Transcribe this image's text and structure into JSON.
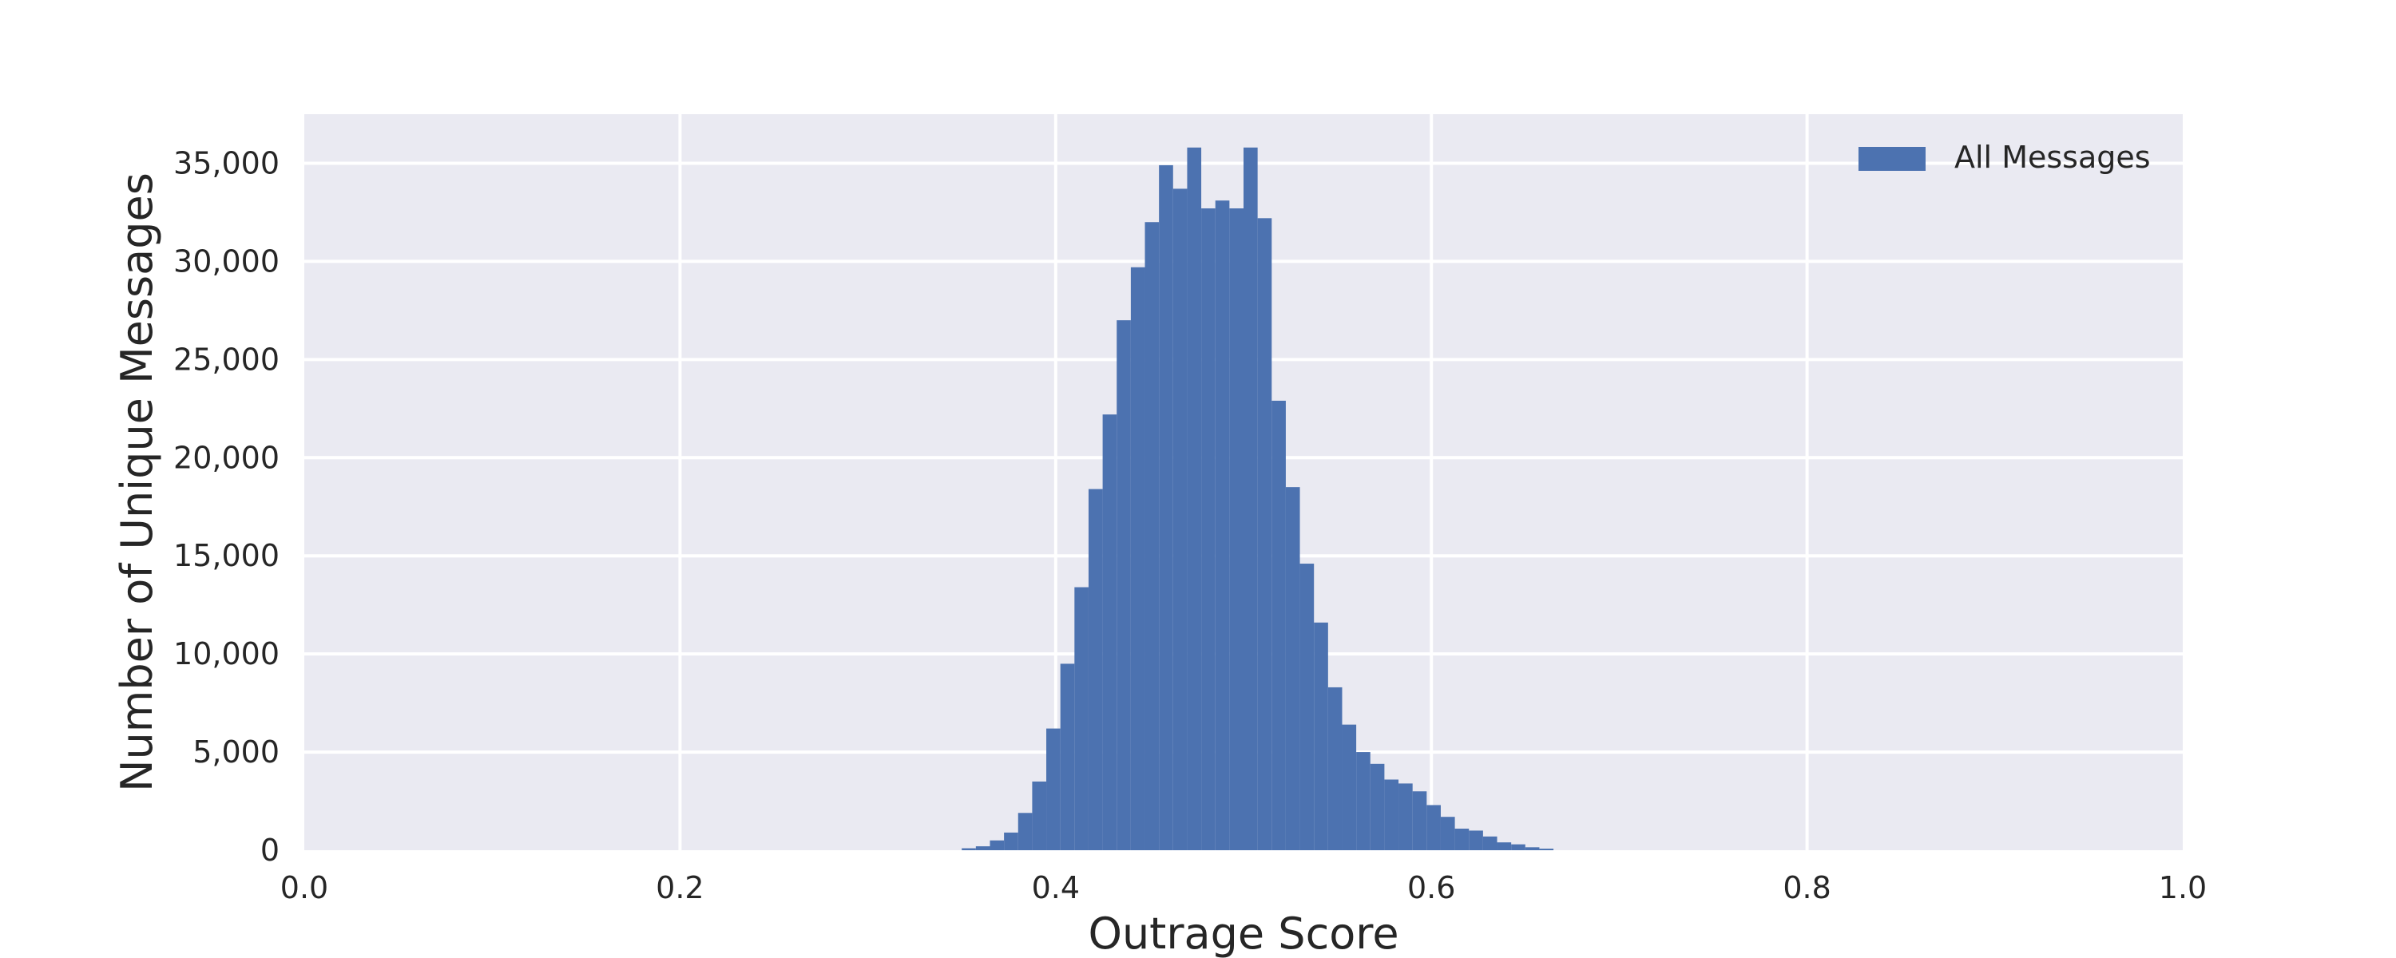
{
  "chart_data": {
    "type": "bar",
    "xlabel": "Outrage Score",
    "ylabel": "Number of Unique Messages",
    "xlim": [
      0.0,
      1.0
    ],
    "ylim": [
      0,
      37500
    ],
    "x_ticks": [
      0.0,
      0.2,
      0.4,
      0.6,
      0.8,
      1.0
    ],
    "x_tick_labels": [
      "0.0",
      "0.2",
      "0.4",
      "0.6",
      "0.8",
      "1.0"
    ],
    "y_ticks": [
      0,
      5000,
      10000,
      15000,
      20000,
      25000,
      30000,
      35000
    ],
    "y_tick_labels": [
      "0",
      "5,000",
      "10,000",
      "15,000",
      "20,000",
      "25,000",
      "30,000",
      "35,000"
    ],
    "grid": true,
    "legend_position": "top-right",
    "colors": {
      "bar": "#4c72b0",
      "background": "#eaeaf2",
      "grid": "#ffffff"
    },
    "series": [
      {
        "name": "All Messages",
        "bin_width": 0.0075,
        "bins": [
          [
            0.35,
            100
          ],
          [
            0.3575,
            200
          ],
          [
            0.365,
            500
          ],
          [
            0.3725,
            900
          ],
          [
            0.38,
            1900
          ],
          [
            0.3875,
            3500
          ],
          [
            0.395,
            6200
          ],
          [
            0.4025,
            9500
          ],
          [
            0.41,
            13400
          ],
          [
            0.4175,
            18400
          ],
          [
            0.425,
            22200
          ],
          [
            0.4325,
            27000
          ],
          [
            0.44,
            29700
          ],
          [
            0.4475,
            32000
          ],
          [
            0.455,
            34900
          ],
          [
            0.4625,
            33700
          ],
          [
            0.47,
            35800
          ],
          [
            0.4775,
            32700
          ],
          [
            0.485,
            33100
          ],
          [
            0.4925,
            32700
          ],
          [
            0.5,
            35800
          ],
          [
            0.5075,
            32200
          ],
          [
            0.515,
            22900
          ],
          [
            0.5225,
            18500
          ],
          [
            0.53,
            14600
          ],
          [
            0.5375,
            11600
          ],
          [
            0.545,
            8300
          ],
          [
            0.5525,
            6400
          ],
          [
            0.56,
            5000
          ],
          [
            0.5675,
            4400
          ],
          [
            0.575,
            3600
          ],
          [
            0.5825,
            3400
          ],
          [
            0.59,
            3000
          ],
          [
            0.5975,
            2300
          ],
          [
            0.605,
            1700
          ],
          [
            0.6125,
            1100
          ],
          [
            0.62,
            1000
          ],
          [
            0.6275,
            700
          ],
          [
            0.635,
            400
          ],
          [
            0.6425,
            300
          ],
          [
            0.65,
            150
          ],
          [
            0.6575,
            80
          ]
        ]
      }
    ]
  }
}
